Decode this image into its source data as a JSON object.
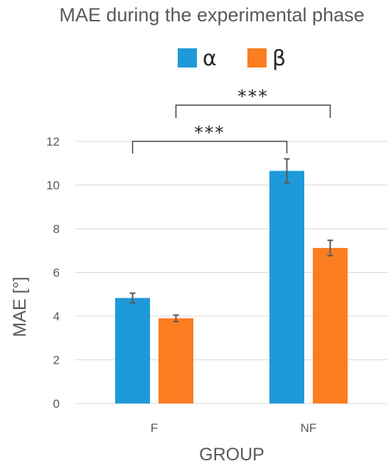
{
  "chart_data": {
    "type": "bar",
    "title": "MAE during the experimental phase",
    "xlabel": "GROUP",
    "ylabel": "MAE [°]",
    "categories": [
      "F",
      "NF"
    ],
    "ylim": [
      0,
      12
    ],
    "yticks": [
      0,
      2,
      4,
      6,
      8,
      10,
      12
    ],
    "grid": true,
    "legend_position": "top",
    "series": [
      {
        "name": "α",
        "color": "#1f9ad8",
        "values": [
          4.83,
          10.65
        ],
        "errors": [
          0.22,
          0.55
        ]
      },
      {
        "name": "β",
        "color": "#fb7d21",
        "values": [
          3.9,
          7.12
        ],
        "errors": [
          0.15,
          0.35
        ]
      }
    ],
    "annotations": [
      {
        "text": "***",
        "from": {
          "category": "F",
          "series": 0
        },
        "to": {
          "category": "NF",
          "series": 0
        }
      },
      {
        "text": "***",
        "from": {
          "category": "F",
          "series": 1
        },
        "to": {
          "category": "NF",
          "series": 1
        }
      }
    ]
  }
}
